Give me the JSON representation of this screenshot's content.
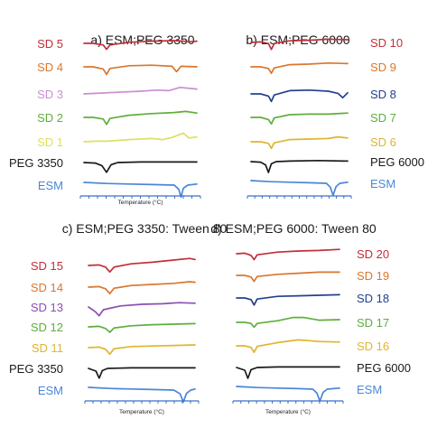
{
  "colors": {
    "SD 20": "#c0303a",
    "SD 15": "#c0303a",
    "SD 10": "#c0303a",
    "SD 5": "#c0303a",
    "SD 19": "#d9772f",
    "SD 14": "#d9772f",
    "SD 9": "#d9772f",
    "SD 4": "#d9772f",
    "SD 18": "#25408f",
    "SD 13": "#8a4fb0",
    "SD 8": "#25408f",
    "SD 3": "#c98fd0",
    "SD 17": "#5fae3c",
    "SD 12": "#5fae3c",
    "SD 7": "#5fae3c",
    "SD 2": "#5fae3c",
    "SD 16": "#e0b52e",
    "SD 11": "#e0b52e",
    "SD 6": "#e0b52e",
    "SD 1": "#dde060",
    "PEG 3350": "#1a1a1a",
    "PEG 6000": "#1a1a1a",
    "ESM": "#4a86d8",
    "axis": "#3a70c6"
  },
  "chart_data": [
    {
      "type": "line",
      "title": "a) ESM;PEG 3350",
      "xlabel": "Temperature (°C)",
      "ylabel": "",
      "label_side": "left",
      "series": [
        {
          "name": "SD 5",
          "color_key": "SD 5",
          "x": [
            0,
            0.08,
            0.17,
            0.2,
            0.23,
            0.4,
            0.6,
            0.8,
            0.95,
            1
          ],
          "y": [
            0,
            0,
            -0.3,
            -1.1,
            -0.3,
            0.2,
            0.4,
            0.5,
            0.3,
            0.4
          ]
        },
        {
          "name": "SD 4",
          "color_key": "SD 4",
          "x": [
            0,
            0.08,
            0.17,
            0.2,
            0.23,
            0.4,
            0.6,
            0.78,
            0.82,
            0.86,
            1
          ],
          "y": [
            0,
            0,
            -0.4,
            -1.4,
            -0.3,
            0.2,
            0.3,
            0.1,
            -0.9,
            0.1,
            0
          ]
        },
        {
          "name": "SD 3",
          "color_key": "SD 3",
          "x": [
            0,
            0.1,
            0.3,
            0.5,
            0.65,
            0.75,
            0.85,
            1
          ],
          "y": [
            0,
            0.1,
            0.3,
            0.5,
            0.7,
            0.6,
            1.2,
            0.9
          ]
        },
        {
          "name": "SD 2",
          "color_key": "SD 2",
          "x": [
            0,
            0.08,
            0.17,
            0.2,
            0.23,
            0.4,
            0.6,
            0.8,
            0.9,
            1
          ],
          "y": [
            0,
            0,
            -0.3,
            -1.3,
            -0.2,
            0.4,
            0.7,
            0.9,
            1.1,
            0.8
          ]
        },
        {
          "name": "SD 1",
          "color_key": "SD 1",
          "x": [
            0,
            0.1,
            0.2,
            0.4,
            0.6,
            0.7,
            0.78,
            0.88,
            0.93,
            1
          ],
          "y": [
            0,
            0.1,
            0.1,
            0.4,
            0.6,
            0.4,
            0.8,
            1.6,
            0.7,
            0.9
          ]
        },
        {
          "name": "PEG 3350",
          "color_key": "PEG 3350",
          "x": [
            0,
            0.1,
            0.16,
            0.2,
            0.24,
            0.3,
            0.5,
            1
          ],
          "y": [
            0,
            -0.1,
            -0.6,
            -1.8,
            -0.4,
            0,
            0.1,
            0.1
          ]
        },
        {
          "name": "ESM",
          "color_key": "ESM",
          "x": [
            0,
            0.2,
            0.4,
            0.6,
            0.8,
            0.84,
            0.86,
            0.88,
            0.92,
            1
          ],
          "y": [
            0.5,
            0.3,
            0.2,
            0.1,
            0,
            -0.8,
            -2.2,
            -0.6,
            0,
            0.2
          ]
        }
      ]
    },
    {
      "type": "line",
      "title": "b) ESM;PEG 6000",
      "xlabel": "",
      "ylabel": "",
      "label_side": "right",
      "series": [
        {
          "name": "SD 10",
          "color_key": "SD 10",
          "x": [
            0,
            0.1,
            0.18,
            0.21,
            0.24,
            0.4,
            0.6,
            0.8,
            1
          ],
          "y": [
            0,
            0.1,
            -0.2,
            -1.3,
            -0.2,
            0.3,
            0.4,
            0.6,
            0.5
          ]
        },
        {
          "name": "SD 9",
          "color_key": "SD 9",
          "x": [
            0,
            0.1,
            0.18,
            0.21,
            0.24,
            0.4,
            0.6,
            0.8,
            1
          ],
          "y": [
            0,
            0,
            -0.3,
            -1.2,
            -0.2,
            0.4,
            0.5,
            0.7,
            0.6
          ]
        },
        {
          "name": "SD 8",
          "color_key": "SD 8",
          "x": [
            0,
            0.1,
            0.18,
            0.21,
            0.24,
            0.4,
            0.6,
            0.8,
            0.9,
            0.95,
            1
          ],
          "y": [
            0,
            0,
            -0.4,
            -1.4,
            -0.2,
            0.6,
            0.7,
            0.5,
            0.1,
            -0.7,
            0.2
          ]
        },
        {
          "name": "SD 7",
          "color_key": "SD 7",
          "x": [
            0,
            0.1,
            0.18,
            0.21,
            0.24,
            0.4,
            0.6,
            0.8,
            1
          ],
          "y": [
            0,
            0,
            -0.4,
            -1.2,
            -0.1,
            0.5,
            0.6,
            0.6,
            0.8
          ]
        },
        {
          "name": "SD 6",
          "color_key": "SD 6",
          "x": [
            0,
            0.1,
            0.18,
            0.21,
            0.24,
            0.4,
            0.6,
            0.8,
            0.9,
            1
          ],
          "y": [
            0,
            0,
            -0.3,
            -1.2,
            -0.2,
            0.4,
            0.5,
            0.6,
            0.9,
            0.7
          ]
        },
        {
          "name": "PEG 6000",
          "color_key": "PEG 6000",
          "x": [
            0,
            0.1,
            0.15,
            0.18,
            0.21,
            0.26,
            0.4,
            0.7,
            1
          ],
          "y": [
            0,
            -0.1,
            -0.6,
            -2,
            -0.4,
            0,
            0.1,
            0.2,
            0.1
          ]
        },
        {
          "name": "ESM",
          "color_key": "ESM",
          "x": [
            0,
            0.2,
            0.4,
            0.6,
            0.78,
            0.82,
            0.85,
            0.88,
            0.92,
            1
          ],
          "y": [
            0.5,
            0.3,
            0.2,
            0.1,
            0,
            -0.7,
            -2.2,
            -0.6,
            0,
            0.2
          ]
        }
      ]
    },
    {
      "type": "line",
      "title": "c) ESM;PEG 3350: Tween 80",
      "xlabel": "Temperature (°C)",
      "ylabel": "",
      "label_side": "left",
      "series": [
        {
          "name": "SD 15",
          "color_key": "SD 15",
          "x": [
            0,
            0.1,
            0.16,
            0.2,
            0.24,
            0.4,
            0.6,
            0.8,
            0.95,
            1
          ],
          "y": [
            0,
            0.1,
            -0.3,
            -1.2,
            -0.3,
            0.3,
            0.6,
            1,
            1.3,
            1.1
          ]
        },
        {
          "name": "SD 14",
          "color_key": "SD 14",
          "x": [
            0,
            0.1,
            0.16,
            0.2,
            0.24,
            0.4,
            0.6,
            0.8,
            0.95,
            1
          ],
          "y": [
            0,
            0.1,
            -0.3,
            -1.2,
            -0.2,
            0.3,
            0.5,
            0.7,
            1,
            0.9
          ]
        },
        {
          "name": "SD 13",
          "color_key": "SD 13",
          "x": [
            0,
            0.06,
            0.1,
            0.14,
            0.3,
            0.5,
            0.7,
            0.85,
            1
          ],
          "y": [
            0,
            -0.8,
            -1.6,
            -0.5,
            0.2,
            0.5,
            0.6,
            0.8,
            0.7
          ]
        },
        {
          "name": "SD 12",
          "color_key": "SD 12",
          "x": [
            0,
            0.1,
            0.16,
            0.2,
            0.24,
            0.4,
            0.6,
            0.8,
            1
          ],
          "y": [
            0,
            0.1,
            -0.3,
            -1,
            -0.2,
            0.2,
            0.4,
            0.5,
            0.6
          ]
        },
        {
          "name": "SD 11",
          "color_key": "SD 11",
          "x": [
            0,
            0.1,
            0.16,
            0.2,
            0.24,
            0.4,
            0.6,
            0.8,
            1
          ],
          "y": [
            0,
            0.1,
            -0.3,
            -1.2,
            -0.2,
            0.2,
            0.3,
            0.4,
            0.5
          ]
        },
        {
          "name": "PEG 3350",
          "color_key": "PEG 3350",
          "x": [
            0,
            0.07,
            0.1,
            0.13,
            0.18,
            0.4,
            0.7,
            1
          ],
          "y": [
            0,
            -0.5,
            -1.8,
            -0.4,
            0,
            0.1,
            0.1,
            0.1
          ]
        },
        {
          "name": "ESM",
          "color_key": "ESM",
          "x": [
            0,
            0.2,
            0.4,
            0.6,
            0.8,
            0.86,
            0.89,
            0.92,
            0.96,
            1
          ],
          "y": [
            0.5,
            0.3,
            0.2,
            0.1,
            0,
            -0.7,
            -2.2,
            -0.6,
            0,
            0.2
          ]
        }
      ]
    },
    {
      "type": "line",
      "title": "d) ESM;PEG 6000: Tween 80",
      "xlabel": "Temperature (°C)",
      "ylabel": "",
      "label_side": "right",
      "series": [
        {
          "name": "SD 20",
          "color_key": "SD 20",
          "x": [
            0,
            0.08,
            0.14,
            0.17,
            0.2,
            0.4,
            0.6,
            0.8,
            1
          ],
          "y": [
            0,
            0.1,
            -0.3,
            -1.1,
            -0.2,
            0.3,
            0.5,
            0.6,
            0.8
          ]
        },
        {
          "name": "SD 19",
          "color_key": "SD 19",
          "x": [
            0,
            0.08,
            0.14,
            0.17,
            0.2,
            0.4,
            0.6,
            0.8,
            1
          ],
          "y": [
            0,
            0,
            -0.3,
            -1.1,
            -0.2,
            0.2,
            0.4,
            0.6,
            0.6
          ]
        },
        {
          "name": "SD 18",
          "color_key": "SD 18",
          "x": [
            0,
            0.08,
            0.14,
            0.17,
            0.2,
            0.4,
            0.6,
            0.8,
            1
          ],
          "y": [
            0,
            0,
            -0.3,
            -1.3,
            -0.2,
            0.3,
            0.4,
            0.5,
            0.6
          ]
        },
        {
          "name": "SD 17",
          "color_key": "SD 17",
          "x": [
            0,
            0.08,
            0.14,
            0.17,
            0.2,
            0.4,
            0.55,
            0.65,
            0.8,
            1
          ],
          "y": [
            0,
            0,
            -0.2,
            -0.9,
            -0.2,
            0.3,
            0.9,
            0.9,
            0.4,
            0.5
          ]
        },
        {
          "name": "SD 16",
          "color_key": "SD 16",
          "x": [
            0,
            0.08,
            0.14,
            0.17,
            0.2,
            0.4,
            0.6,
            0.8,
            1
          ],
          "y": [
            0,
            0,
            -0.3,
            -1.2,
            -0.1,
            0.6,
            1.1,
            0.8,
            0.7
          ]
        },
        {
          "name": "PEG 6000",
          "color_key": "PEG 6000",
          "x": [
            0,
            0.08,
            0.11,
            0.14,
            0.2,
            0.4,
            0.7,
            1
          ],
          "y": [
            0,
            -0.5,
            -2,
            -0.4,
            0,
            0.1,
            0.1,
            0.1
          ]
        },
        {
          "name": "ESM",
          "color_key": "ESM",
          "x": [
            0,
            0.2,
            0.4,
            0.6,
            0.74,
            0.78,
            0.81,
            0.84,
            0.88,
            1
          ],
          "y": [
            0.5,
            0.3,
            0.2,
            0.1,
            0,
            -0.7,
            -2.2,
            -0.6,
            0,
            0.2
          ]
        }
      ]
    }
  ]
}
